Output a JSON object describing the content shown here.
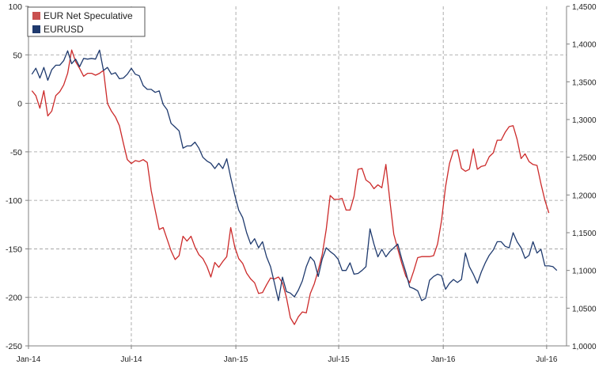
{
  "chart_data": {
    "type": "line",
    "grid": true,
    "legend_position": "top-left",
    "x_tick_labels": [
      "Jan-14",
      "Jul-14",
      "Jan-15",
      "Jul-15",
      "Jan-16",
      "Jul-16"
    ],
    "y_left": {
      "ticks": [
        100,
        50,
        0,
        -50,
        -100,
        -150,
        -200,
        -250
      ],
      "range": [
        -250,
        100
      ]
    },
    "y_right": {
      "ticks": [
        "1,4500",
        "1,4000",
        "1,3500",
        "1,3000",
        "1,2500",
        "1,2000",
        "1,1500",
        "1,1000",
        "1,0500",
        "1,0000"
      ],
      "range": [
        1.0,
        1.45
      ]
    },
    "x_range": [
      "2014-01-01",
      "2016-08-05"
    ],
    "series": [
      {
        "name": "EUR Net Speculative",
        "axis": "left",
        "color": "#cc2a2a",
        "legend_color": "#c9504f",
        "points": [
          [
            "2014-01-07",
            13
          ],
          [
            "2014-01-14",
            8
          ],
          [
            "2014-01-21",
            -5
          ],
          [
            "2014-01-28",
            13
          ],
          [
            "2014-02-04",
            -13
          ],
          [
            "2014-02-11",
            -8
          ],
          [
            "2014-02-18",
            8
          ],
          [
            "2014-02-25",
            12
          ],
          [
            "2014-03-04",
            19
          ],
          [
            "2014-03-11",
            31
          ],
          [
            "2014-03-18",
            55
          ],
          [
            "2014-03-25",
            43
          ],
          [
            "2014-04-01",
            36
          ],
          [
            "2014-04-08",
            28
          ],
          [
            "2014-04-15",
            31
          ],
          [
            "2014-04-22",
            31
          ],
          [
            "2014-04-29",
            29
          ],
          [
            "2014-05-06",
            31
          ],
          [
            "2014-05-13",
            34
          ],
          [
            "2014-05-20",
            0
          ],
          [
            "2014-05-27",
            -8
          ],
          [
            "2014-06-03",
            -14
          ],
          [
            "2014-06-10",
            -23
          ],
          [
            "2014-06-17",
            -41
          ],
          [
            "2014-06-24",
            -58
          ],
          [
            "2014-07-01",
            -62
          ],
          [
            "2014-07-08",
            -59
          ],
          [
            "2014-07-15",
            -60
          ],
          [
            "2014-07-22",
            -58
          ],
          [
            "2014-07-29",
            -61
          ],
          [
            "2014-08-05",
            -90
          ],
          [
            "2014-08-12",
            -110
          ],
          [
            "2014-08-19",
            -130
          ],
          [
            "2014-08-26",
            -128
          ],
          [
            "2014-09-02",
            -140
          ],
          [
            "2014-09-09",
            -152
          ],
          [
            "2014-09-16",
            -161
          ],
          [
            "2014-09-23",
            -157
          ],
          [
            "2014-09-30",
            -137
          ],
          [
            "2014-10-07",
            -142
          ],
          [
            "2014-10-14",
            -137
          ],
          [
            "2014-10-21",
            -148
          ],
          [
            "2014-10-28",
            -156
          ],
          [
            "2014-11-04",
            -160
          ],
          [
            "2014-11-11",
            -168
          ],
          [
            "2014-11-18",
            -179
          ],
          [
            "2014-11-25",
            -164
          ],
          [
            "2014-12-02",
            -169
          ],
          [
            "2014-12-09",
            -163
          ],
          [
            "2014-12-16",
            -158
          ],
          [
            "2014-12-23",
            -128
          ],
          [
            "2014-12-30",
            -148
          ],
          [
            "2015-01-06",
            -160
          ],
          [
            "2015-01-13",
            -165
          ],
          [
            "2015-01-20",
            -175
          ],
          [
            "2015-01-27",
            -181
          ],
          [
            "2015-02-03",
            -185
          ],
          [
            "2015-02-10",
            -196
          ],
          [
            "2015-02-17",
            -195
          ],
          [
            "2015-02-24",
            -187
          ],
          [
            "2015-03-03",
            -180
          ],
          [
            "2015-03-10",
            -181
          ],
          [
            "2015-03-17",
            -179
          ],
          [
            "2015-03-24",
            -185
          ],
          [
            "2015-03-31",
            -200
          ],
          [
            "2015-04-07",
            -221
          ],
          [
            "2015-04-14",
            -228
          ],
          [
            "2015-04-21",
            -220
          ],
          [
            "2015-04-28",
            -215
          ],
          [
            "2015-05-05",
            -216
          ],
          [
            "2015-05-12",
            -196
          ],
          [
            "2015-05-19",
            -186
          ],
          [
            "2015-05-26",
            -172
          ],
          [
            "2015-06-02",
            -156
          ],
          [
            "2015-06-09",
            -130
          ],
          [
            "2015-06-16",
            -95
          ],
          [
            "2015-06-23",
            -99
          ],
          [
            "2015-06-30",
            -99
          ],
          [
            "2015-07-07",
            -98
          ],
          [
            "2015-07-14",
            -110
          ],
          [
            "2015-07-21",
            -110
          ],
          [
            "2015-07-28",
            -96
          ],
          [
            "2015-08-04",
            -68
          ],
          [
            "2015-08-11",
            -67
          ],
          [
            "2015-08-18",
            -79
          ],
          [
            "2015-08-25",
            -82
          ],
          [
            "2015-09-01",
            -88
          ],
          [
            "2015-09-08",
            -84
          ],
          [
            "2015-09-15",
            -87
          ],
          [
            "2015-09-22",
            -63
          ],
          [
            "2015-09-29",
            -100
          ],
          [
            "2015-10-06",
            -135
          ],
          [
            "2015-10-13",
            -150
          ],
          [
            "2015-10-20",
            -165
          ],
          [
            "2015-10-27",
            -178
          ],
          [
            "2015-11-03",
            -185
          ],
          [
            "2015-11-10",
            -173
          ],
          [
            "2015-11-17",
            -159
          ],
          [
            "2015-11-24",
            -158
          ],
          [
            "2015-12-01",
            -158
          ],
          [
            "2015-12-08",
            -158
          ],
          [
            "2015-12-15",
            -157
          ],
          [
            "2015-12-22",
            -145
          ],
          [
            "2015-12-29",
            -121
          ],
          [
            "2016-01-05",
            -86
          ],
          [
            "2016-01-12",
            -62
          ],
          [
            "2016-01-19",
            -49
          ],
          [
            "2016-01-26",
            -48
          ],
          [
            "2016-02-02",
            -67
          ],
          [
            "2016-02-09",
            -70
          ],
          [
            "2016-02-16",
            -68
          ],
          [
            "2016-02-23",
            -47
          ],
          [
            "2016-03-01",
            -68
          ],
          [
            "2016-03-08",
            -65
          ],
          [
            "2016-03-15",
            -64
          ],
          [
            "2016-03-22",
            -55
          ],
          [
            "2016-03-29",
            -51
          ],
          [
            "2016-04-05",
            -38
          ],
          [
            "2016-04-12",
            -38
          ],
          [
            "2016-04-19",
            -30
          ],
          [
            "2016-04-26",
            -24
          ],
          [
            "2016-05-03",
            -23
          ],
          [
            "2016-05-10",
            -37
          ],
          [
            "2016-05-17",
            -57
          ],
          [
            "2016-05-24",
            -52
          ],
          [
            "2016-05-31",
            -60
          ],
          [
            "2016-06-07",
            -63
          ],
          [
            "2016-06-14",
            -64
          ],
          [
            "2016-06-21",
            -83
          ],
          [
            "2016-06-28",
            -100
          ],
          [
            "2016-07-05",
            -113
          ]
        ]
      },
      {
        "name": "EURUSD",
        "axis": "right",
        "color": "#1f3a6e",
        "legend_color": "#1f3a6e",
        "points": [
          [
            "2014-01-07",
            1.36
          ],
          [
            "2014-01-14",
            1.368
          ],
          [
            "2014-01-21",
            1.355
          ],
          [
            "2014-01-28",
            1.369
          ],
          [
            "2014-02-04",
            1.352
          ],
          [
            "2014-02-11",
            1.366
          ],
          [
            "2014-02-18",
            1.372
          ],
          [
            "2014-02-25",
            1.372
          ],
          [
            "2014-03-04",
            1.378
          ],
          [
            "2014-03-11",
            1.391
          ],
          [
            "2014-03-18",
            1.374
          ],
          [
            "2014-03-25",
            1.38
          ],
          [
            "2014-04-01",
            1.37
          ],
          [
            "2014-04-08",
            1.381
          ],
          [
            "2014-04-15",
            1.38
          ],
          [
            "2014-04-22",
            1.381
          ],
          [
            "2014-04-29",
            1.38
          ],
          [
            "2014-05-06",
            1.392
          ],
          [
            "2014-05-13",
            1.365
          ],
          [
            "2014-05-20",
            1.369
          ],
          [
            "2014-05-27",
            1.36
          ],
          [
            "2014-06-03",
            1.362
          ],
          [
            "2014-06-10",
            1.354
          ],
          [
            "2014-06-17",
            1.355
          ],
          [
            "2014-06-24",
            1.36
          ],
          [
            "2014-07-01",
            1.368
          ],
          [
            "2014-07-08",
            1.36
          ],
          [
            "2014-07-15",
            1.358
          ],
          [
            "2014-07-22",
            1.345
          ],
          [
            "2014-07-29",
            1.34
          ],
          [
            "2014-08-05",
            1.34
          ],
          [
            "2014-08-12",
            1.336
          ],
          [
            "2014-08-19",
            1.338
          ],
          [
            "2014-08-26",
            1.32
          ],
          [
            "2014-09-02",
            1.313
          ],
          [
            "2014-09-09",
            1.295
          ],
          [
            "2014-09-16",
            1.29
          ],
          [
            "2014-09-23",
            1.285
          ],
          [
            "2014-09-30",
            1.262
          ],
          [
            "2014-10-07",
            1.265
          ],
          [
            "2014-10-14",
            1.265
          ],
          [
            "2014-10-21",
            1.27
          ],
          [
            "2014-10-28",
            1.262
          ],
          [
            "2014-11-04",
            1.25
          ],
          [
            "2014-11-11",
            1.245
          ],
          [
            "2014-11-18",
            1.242
          ],
          [
            "2014-11-25",
            1.235
          ],
          [
            "2014-12-02",
            1.242
          ],
          [
            "2014-12-09",
            1.235
          ],
          [
            "2014-12-16",
            1.248
          ],
          [
            "2014-12-23",
            1.223
          ],
          [
            "2014-12-30",
            1.2
          ],
          [
            "2015-01-06",
            1.18
          ],
          [
            "2015-01-13",
            1.17
          ],
          [
            "2015-01-20",
            1.15
          ],
          [
            "2015-01-27",
            1.135
          ],
          [
            "2015-02-03",
            1.142
          ],
          [
            "2015-02-10",
            1.13
          ],
          [
            "2015-02-17",
            1.138
          ],
          [
            "2015-02-24",
            1.118
          ],
          [
            "2015-03-03",
            1.105
          ],
          [
            "2015-03-10",
            1.083
          ],
          [
            "2015-03-17",
            1.06
          ],
          [
            "2015-03-24",
            1.091
          ],
          [
            "2015-03-31",
            1.072
          ],
          [
            "2015-04-07",
            1.07
          ],
          [
            "2015-04-14",
            1.065
          ],
          [
            "2015-04-21",
            1.074
          ],
          [
            "2015-04-28",
            1.086
          ],
          [
            "2015-05-05",
            1.105
          ],
          [
            "2015-05-12",
            1.118
          ],
          [
            "2015-05-19",
            1.112
          ],
          [
            "2015-05-26",
            1.092
          ],
          [
            "2015-06-02",
            1.115
          ],
          [
            "2015-06-09",
            1.13
          ],
          [
            "2015-06-16",
            1.125
          ],
          [
            "2015-06-23",
            1.121
          ],
          [
            "2015-06-30",
            1.115
          ],
          [
            "2015-07-07",
            1.1
          ],
          [
            "2015-07-14",
            1.1
          ],
          [
            "2015-07-21",
            1.11
          ],
          [
            "2015-07-28",
            1.095
          ],
          [
            "2015-08-04",
            1.096
          ],
          [
            "2015-08-11",
            1.1
          ],
          [
            "2015-08-18",
            1.105
          ],
          [
            "2015-08-25",
            1.155
          ],
          [
            "2015-09-01",
            1.135
          ],
          [
            "2015-09-08",
            1.118
          ],
          [
            "2015-09-15",
            1.128
          ],
          [
            "2015-09-22",
            1.118
          ],
          [
            "2015-09-29",
            1.125
          ],
          [
            "2015-10-06",
            1.13
          ],
          [
            "2015-10-13",
            1.135
          ],
          [
            "2015-10-20",
            1.115
          ],
          [
            "2015-10-27",
            1.098
          ],
          [
            "2015-11-03",
            1.078
          ],
          [
            "2015-11-10",
            1.076
          ],
          [
            "2015-11-17",
            1.073
          ],
          [
            "2015-11-24",
            1.06
          ],
          [
            "2015-12-01",
            1.063
          ],
          [
            "2015-12-08",
            1.087
          ],
          [
            "2015-12-15",
            1.092
          ],
          [
            "2015-12-22",
            1.095
          ],
          [
            "2015-12-29",
            1.093
          ],
          [
            "2016-01-05",
            1.075
          ],
          [
            "2016-01-12",
            1.083
          ],
          [
            "2016-01-19",
            1.088
          ],
          [
            "2016-01-26",
            1.084
          ],
          [
            "2016-02-02",
            1.088
          ],
          [
            "2016-02-09",
            1.123
          ],
          [
            "2016-02-16",
            1.105
          ],
          [
            "2016-02-23",
            1.095
          ],
          [
            "2016-03-01",
            1.083
          ],
          [
            "2016-03-08",
            1.098
          ],
          [
            "2016-03-15",
            1.11
          ],
          [
            "2016-03-22",
            1.12
          ],
          [
            "2016-03-29",
            1.127
          ],
          [
            "2016-04-05",
            1.138
          ],
          [
            "2016-04-12",
            1.138
          ],
          [
            "2016-04-19",
            1.132
          ],
          [
            "2016-04-26",
            1.13
          ],
          [
            "2016-05-03",
            1.15
          ],
          [
            "2016-05-10",
            1.138
          ],
          [
            "2016-05-17",
            1.13
          ],
          [
            "2016-05-24",
            1.116
          ],
          [
            "2016-05-31",
            1.12
          ],
          [
            "2016-06-07",
            1.138
          ],
          [
            "2016-06-14",
            1.123
          ],
          [
            "2016-06-21",
            1.128
          ],
          [
            "2016-06-28",
            1.106
          ],
          [
            "2016-07-05",
            1.106
          ],
          [
            "2016-07-12",
            1.105
          ],
          [
            "2016-07-19",
            1.1
          ]
        ]
      }
    ]
  }
}
